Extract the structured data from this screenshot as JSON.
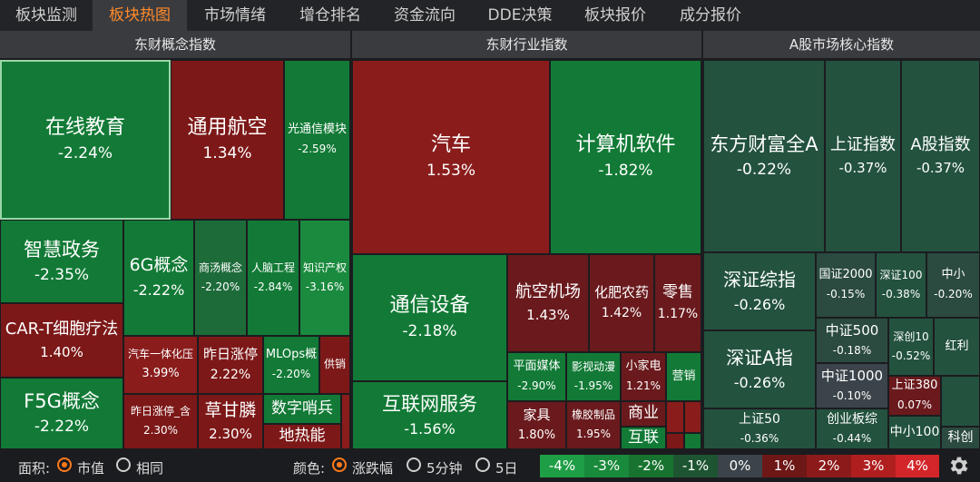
{
  "tabs": [
    {
      "label": "板块监测"
    },
    {
      "label": "板块热图",
      "active": true
    },
    {
      "label": "市场情绪"
    },
    {
      "label": "增仓排名"
    },
    {
      "label": "资金流向"
    },
    {
      "label": "DDE决策"
    },
    {
      "label": "板块报价"
    },
    {
      "label": "成分报价"
    }
  ],
  "sections": {
    "concept": "东财概念指数",
    "industry": "东财行业指数",
    "core": "A股市场核心指数"
  },
  "cells": {
    "zxjy": {
      "name": "在线教育",
      "value": "-2.24%"
    },
    "tyhk": {
      "name": "通用航空",
      "value": "1.34%"
    },
    "gtxmk": {
      "name": "光通信模块",
      "value": "-2.59%"
    },
    "zhzw": {
      "name": "智慧政务",
      "value": "-2.35%"
    },
    "g6": {
      "name": "6G概念",
      "value": "-2.22%"
    },
    "sygn": {
      "name": "商汤概念",
      "value": "-2.20%"
    },
    "rngc": {
      "name": "人脑工程",
      "value": "-2.84%"
    },
    "zscq": {
      "name": "知识产权",
      "value": "-3.16%"
    },
    "cart": {
      "name": "CAR-T细胞疗法",
      "value": "1.40%"
    },
    "f5g": {
      "name": "F5G概念",
      "value": "-2.22%"
    },
    "qcyth": {
      "name": "汽车一体化压",
      "value": "3.99%"
    },
    "zrzt": {
      "name": "昨日涨停",
      "value": "2.22%"
    },
    "mlops": {
      "name": "MLOps概",
      "value": "-2.20%"
    },
    "gx": {
      "name": "供销"
    },
    "zrzth": {
      "name": "昨日涨停_含",
      "value": "2.30%"
    },
    "cgl": {
      "name": "草甘膦",
      "value": "2.30%"
    },
    "szsb": {
      "name": "数字哨兵"
    },
    "drn": {
      "name": "地热能"
    },
    "qc": {
      "name": "汽车",
      "value": "1.53%"
    },
    "jsjrj": {
      "name": "计算机软件",
      "value": "-1.82%"
    },
    "txsb": {
      "name": "通信设备",
      "value": "-2.18%"
    },
    "hkjc": {
      "name": "航空机场",
      "value": "1.43%"
    },
    "hfny": {
      "name": "化肥农药",
      "value": "1.42%"
    },
    "ls": {
      "name": "零售",
      "value": "1.17%"
    },
    "pmmt": {
      "name": "平面媒体",
      "value": "-2.90%"
    },
    "ysdm": {
      "name": "影视动漫",
      "value": "-1.95%"
    },
    "xjd": {
      "name": "小家电",
      "value": "1.21%"
    },
    "yx": {
      "name": "营销"
    },
    "hlwfw": {
      "name": "互联网服务",
      "value": "-1.56%"
    },
    "jj": {
      "name": "家具",
      "value": "1.80%"
    },
    "xjzp": {
      "name": "橡胶制品",
      "value": "1.95%"
    },
    "sy": {
      "name": "商业"
    },
    "hl": {
      "name": "互联"
    },
    "dfcf": {
      "name": "东方财富全A",
      "value": "-0.22%"
    },
    "szzs": {
      "name": "上证指数",
      "value": "-0.37%"
    },
    "agzs": {
      "name": "A股指数",
      "value": "-0.37%"
    },
    "szzz": {
      "name": "深证综指",
      "value": "-0.26%"
    },
    "gz2000": {
      "name": "国证2000",
      "value": "-0.15%"
    },
    "sz100": {
      "name": "深证100",
      "value": "-0.38%"
    },
    "zx": {
      "name": "中小",
      "value": "-0.20%"
    },
    "szaz": {
      "name": "深证A指",
      "value": "-0.26%"
    },
    "zz500": {
      "name": "中证500",
      "value": "-0.18%"
    },
    "sc10": {
      "name": "深创10",
      "value": "-0.52%"
    },
    "hl2": {
      "name": "红利"
    },
    "zz1000": {
      "name": "中证1000",
      "value": "-0.10%"
    },
    "sz380": {
      "name": "上证380",
      "value": "0.07%"
    },
    "sz50": {
      "name": "上证50",
      "value": "-0.36%"
    },
    "cybz": {
      "name": "创业板综",
      "value": "-0.44%"
    },
    "zx100": {
      "name": "中小100"
    },
    "kc": {
      "name": "科创"
    }
  },
  "bottom": {
    "area_label": "面积:",
    "area_options": [
      {
        "label": "市值",
        "selected": true
      },
      {
        "label": "相同",
        "selected": false
      }
    ],
    "color_label": "颜色:",
    "color_options": [
      {
        "label": "涨跌幅",
        "selected": true
      },
      {
        "label": "5分钟",
        "selected": false
      },
      {
        "label": "5日",
        "selected": false
      }
    ],
    "legend": [
      {
        "label": "-4%",
        "color": "#1e9e45"
      },
      {
        "label": "-3%",
        "color": "#198a3b"
      },
      {
        "label": "-2%",
        "color": "#17732f"
      },
      {
        "label": "-1%",
        "color": "#1d5532"
      },
      {
        "label": "0%",
        "color": "#3b444a"
      },
      {
        "label": "1%",
        "color": "#6e1717"
      },
      {
        "label": "2%",
        "color": "#8d1a1a"
      },
      {
        "label": "3%",
        "color": "#b01f1f"
      },
      {
        "label": "4%",
        "color": "#d3262a"
      }
    ],
    "settings_icon": "gear-icon"
  }
}
